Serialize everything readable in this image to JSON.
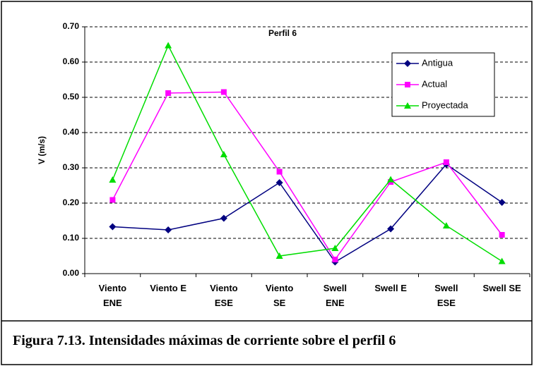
{
  "chart_data": {
    "type": "line",
    "title": "Perfil 6",
    "ylabel": "V (m/s)",
    "caption": "Figura 7.13. Intensidades máximas de corriente sobre el perfil 6",
    "categories": [
      "Viento ENE",
      "Viento E",
      "Viento ESE",
      "Viento SE",
      "Swell ENE",
      "Swell E",
      "Swell ESE",
      "Swell SE"
    ],
    "series": [
      {
        "name": "Antigua",
        "color": "#000080",
        "marker": "diamond",
        "values": [
          0.133,
          0.124,
          0.157,
          0.258,
          0.033,
          0.127,
          0.31,
          0.202
        ]
      },
      {
        "name": "Actual",
        "color": "#ff00ff",
        "marker": "square",
        "values": [
          0.209,
          0.512,
          0.515,
          0.289,
          0.04,
          0.26,
          0.316,
          0.11
        ]
      },
      {
        "name": "Proyectada",
        "color": "#00dd00",
        "marker": "triangle",
        "values": [
          0.266,
          0.647,
          0.338,
          0.05,
          0.072,
          0.267,
          0.136,
          0.035
        ]
      }
    ],
    "ylim": [
      0,
      0.7
    ],
    "yticks": [
      {
        "value": 0,
        "label": "0.00"
      },
      {
        "value": 0.1,
        "label": "0.10"
      },
      {
        "value": 0.2,
        "label": "0.20"
      },
      {
        "value": 0.3,
        "label": "0.30"
      },
      {
        "value": 0.4,
        "label": "0.40"
      },
      {
        "value": 0.5,
        "label": "0.50"
      },
      {
        "value": 0.6,
        "label": "0.60"
      },
      {
        "value": 0.7,
        "label": "0.70"
      }
    ],
    "grid": true,
    "legend": "upper right"
  }
}
